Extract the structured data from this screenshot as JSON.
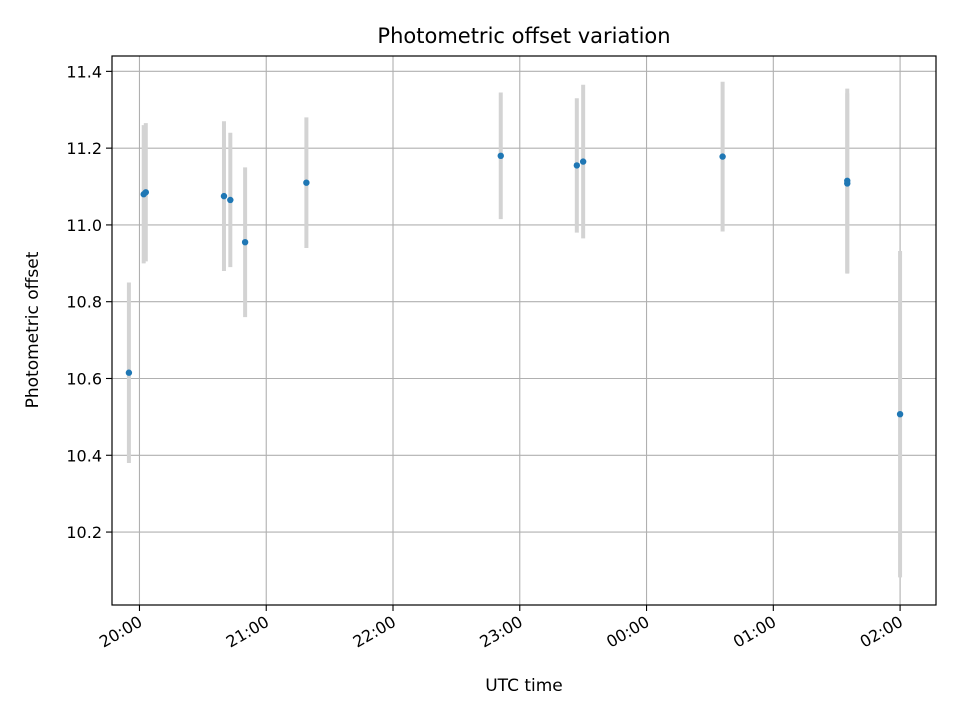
{
  "chart_data": {
    "type": "scatter",
    "title": "Photometric offset variation",
    "xlabel": "UTC time",
    "ylabel": "Photometric offset",
    "x_axis": {
      "kind": "time",
      "range": [
        "19:47",
        "02:17"
      ],
      "ticks": [
        "20:00",
        "21:00",
        "22:00",
        "23:00",
        "00:00",
        "01:00",
        "02:00"
      ]
    },
    "y_axis": {
      "range": [
        10.01,
        11.44
      ],
      "ticks": [
        10.2,
        10.4,
        10.6,
        10.8,
        11.0,
        11.2,
        11.4
      ]
    },
    "grid": true,
    "point_color": "#1f77b4",
    "errorbar_color": "#d3d3d3",
    "points": [
      {
        "time": "19:55",
        "y": 10.615,
        "err": 0.235
      },
      {
        "time": "20:02",
        "y": 11.08,
        "err": 0.18
      },
      {
        "time": "20:03",
        "y": 11.085,
        "err": 0.18
      },
      {
        "time": "20:40",
        "y": 11.075,
        "err": 0.195
      },
      {
        "time": "20:43",
        "y": 11.065,
        "err": 0.175
      },
      {
        "time": "20:50",
        "y": 10.955,
        "err": 0.195
      },
      {
        "time": "21:19",
        "y": 11.11,
        "err": 0.17
      },
      {
        "time": "22:51",
        "y": 11.18,
        "err": 0.165
      },
      {
        "time": "23:27",
        "y": 11.155,
        "err": 0.175
      },
      {
        "time": "23:30",
        "y": 11.165,
        "err": 0.2
      },
      {
        "time": "00:36",
        "y": 11.178,
        "err": 0.195
      },
      {
        "time": "01:35",
        "y": 11.115,
        "err": 0.24
      },
      {
        "time": "01:35",
        "y": 11.108,
        "err": 0.235
      },
      {
        "time": "02:00",
        "y": 10.507,
        "err": 0.425
      }
    ]
  }
}
